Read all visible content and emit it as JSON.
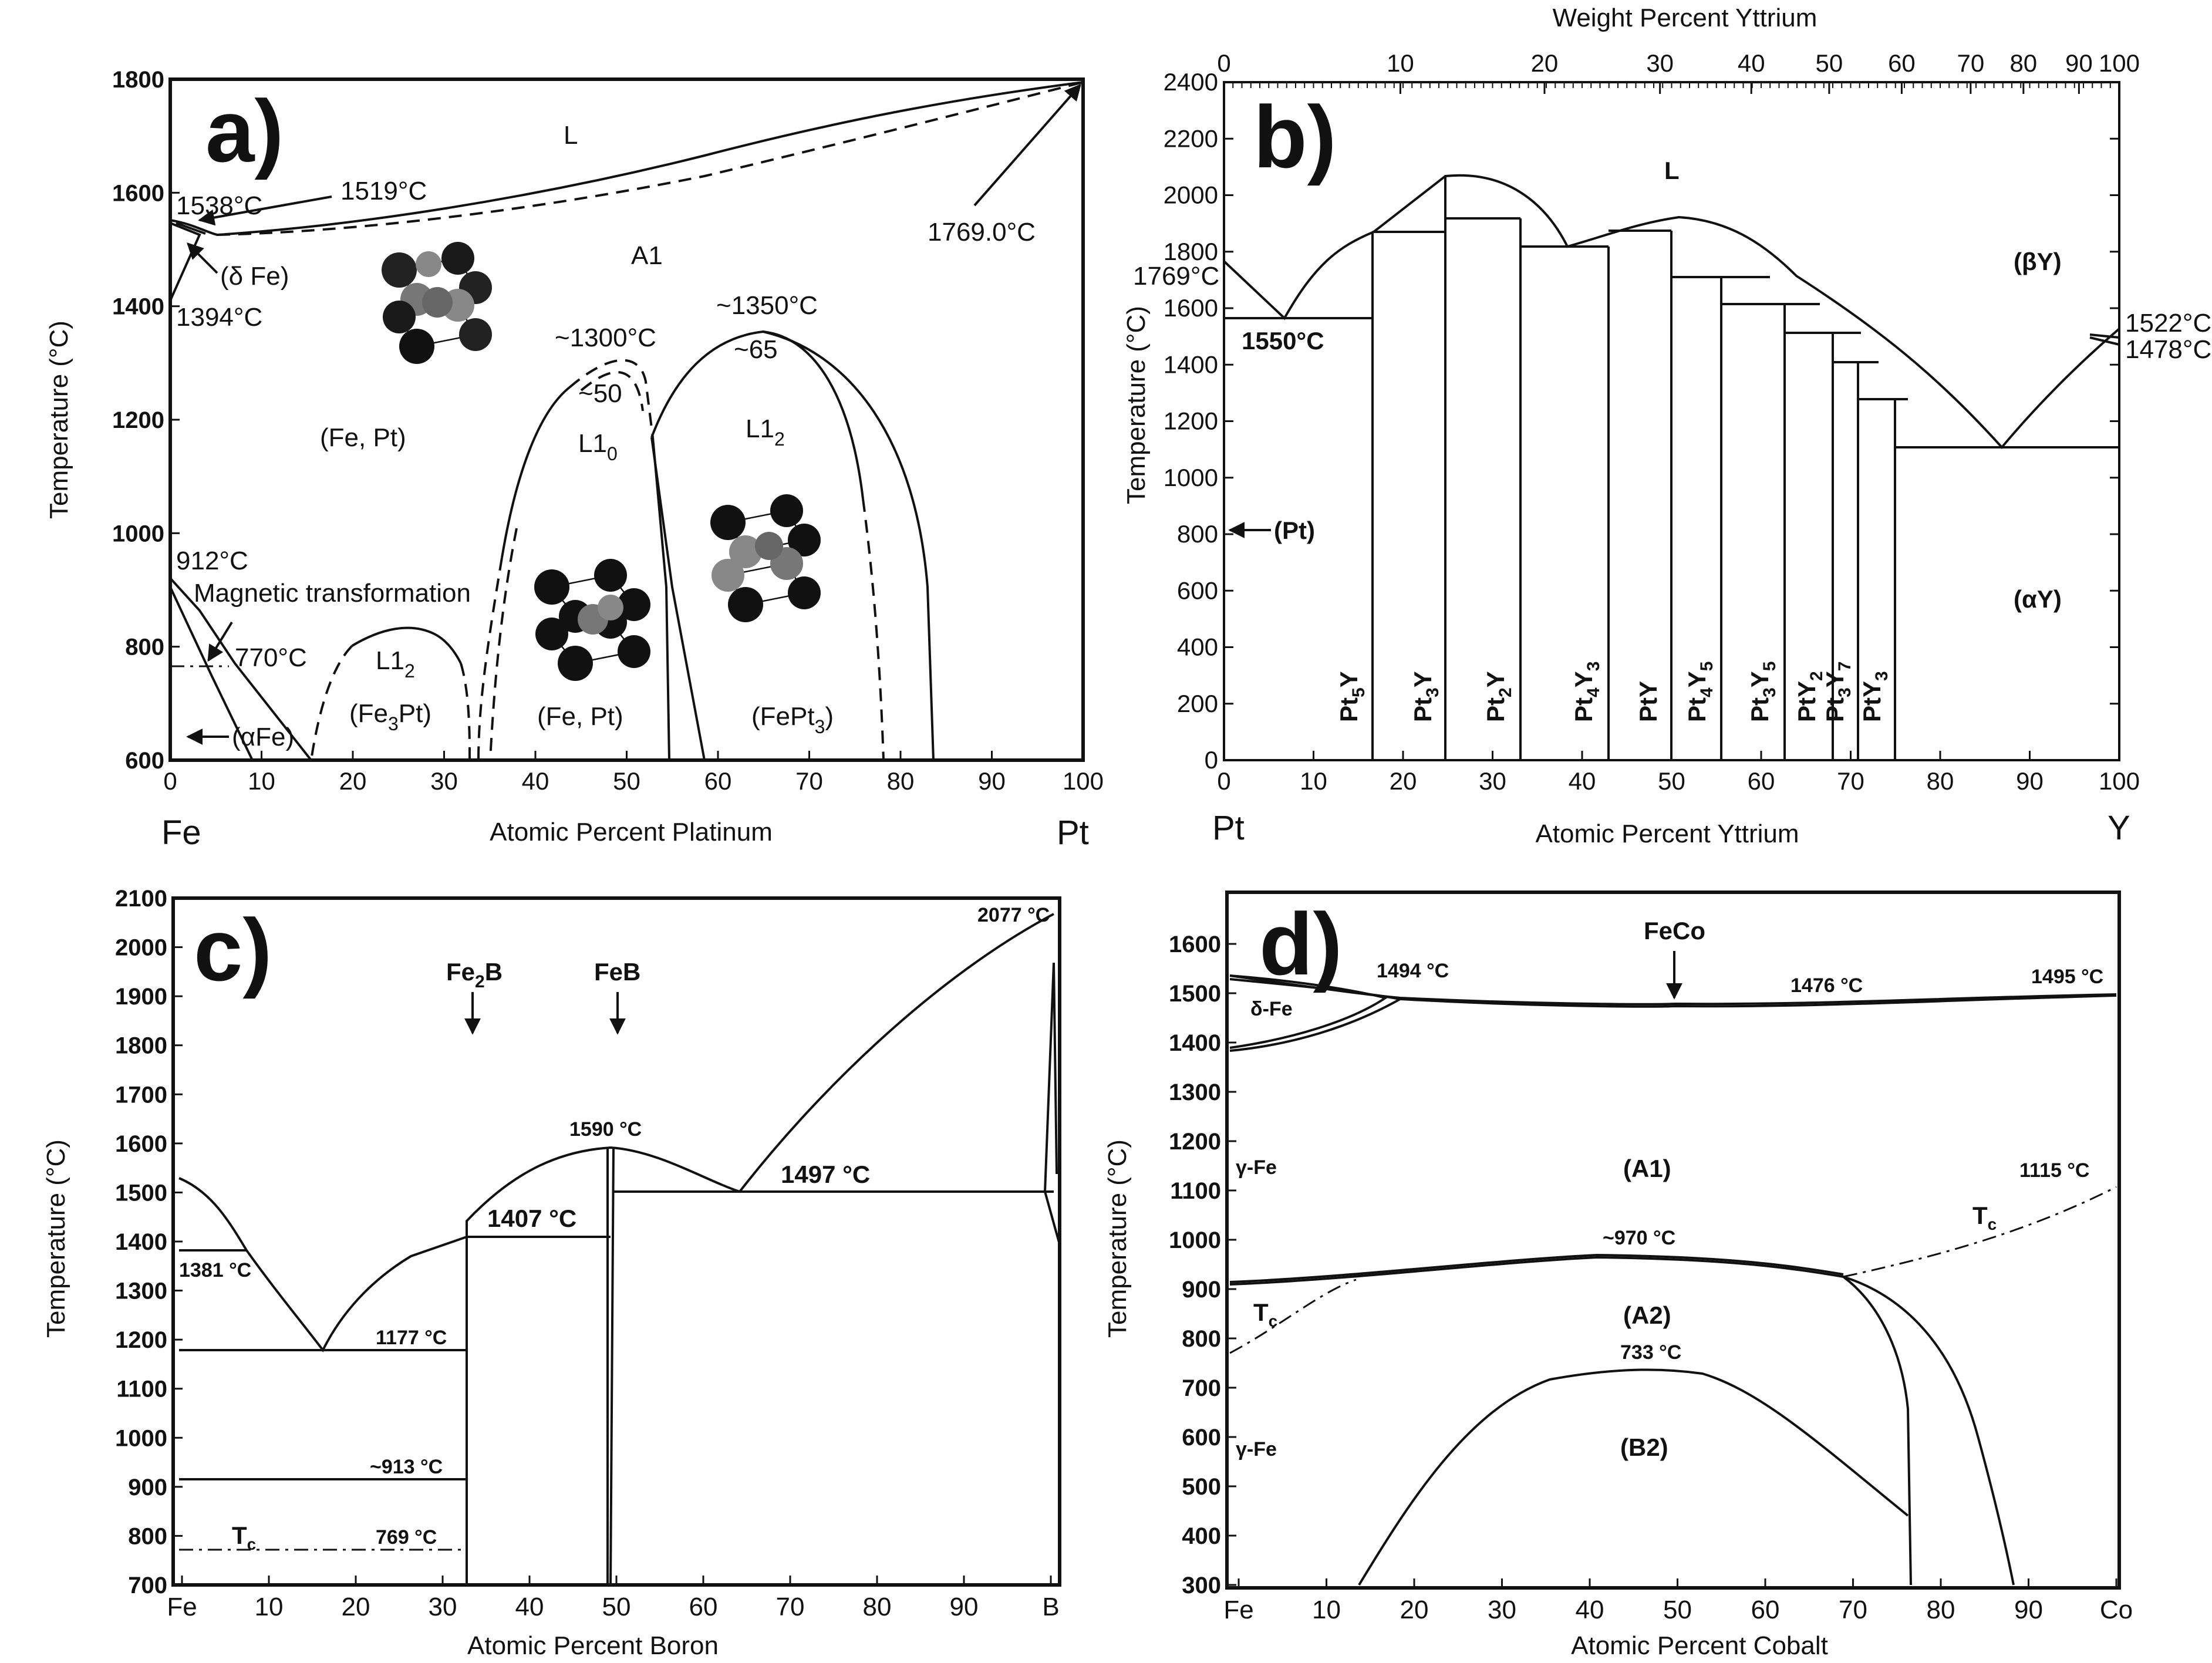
{
  "panels": {
    "a": {
      "label": "a)",
      "y_axis_title": "Temperature (°C)",
      "x_axis_title": "Atomic Percent Platinum",
      "x_start_label": "Fe",
      "x_end_label": "Pt",
      "y_ticks": [
        "600",
        "800",
        "1000",
        "1200",
        "1400",
        "1600",
        "1800"
      ],
      "x_ticks": [
        "0",
        "10",
        "20",
        "30",
        "40",
        "50",
        "60",
        "70",
        "80",
        "90",
        "100"
      ],
      "annotations": {
        "L": "L",
        "t1538": "1538°C",
        "t1519": "1519°C",
        "t1769": "1769.0°C",
        "delta_fe": "(δ Fe)",
        "t1394": "1394°C",
        "A1": "A1",
        "t1350": "~1350°C",
        "c65": "~65",
        "t1300": "~1300°C",
        "c50": "~50",
        "fept_left": "(Fe, Pt)",
        "l10": "L1",
        "l10_sub": "0",
        "l12_right": "L1",
        "l12_right_sub": "2",
        "t912": "912°C",
        "magnetic": "Magnetic transformation",
        "t770": "770°C",
        "l12_left": "L1",
        "l12_left_sub": "2",
        "fe3pt_pre": "(Fe",
        "fe3pt_sub": "3",
        "fe3pt_post": "Pt)",
        "fept_mid": "(Fe, Pt)",
        "fept3_pre": "(FePt",
        "fept3_sub": "3",
        "fept3_post": ")",
        "alpha_fe": "(αFe)"
      }
    },
    "b": {
      "label": "b)",
      "top_axis_title": "Weight Percent Yttrium",
      "y_axis_title": "Temperature (°C)",
      "x_axis_title": "Atomic Percent Yttrium",
      "x_start_label": "Pt",
      "x_end_label": "Y",
      "y_ticks": [
        "0",
        "200",
        "400",
        "600",
        "800",
        "1000",
        "1200",
        "1400",
        "1600",
        "1800",
        "2000",
        "2200",
        "2400"
      ],
      "x_ticks": [
        "0",
        "10",
        "20",
        "30",
        "40",
        "50",
        "60",
        "70",
        "80",
        "90",
        "100"
      ],
      "top_ticks": [
        "0",
        "10",
        "20",
        "30",
        "40",
        "50",
        "60",
        "70",
        "80",
        "90",
        "100"
      ],
      "annotations": {
        "L": "L",
        "beta_y": "(βY)",
        "alpha_y": "(αY)",
        "t1769": "1769°C",
        "t1550": "1550°C",
        "t1522": "1522°C",
        "t1478": "1478°C",
        "pt": "(Pt)"
      },
      "compounds": [
        {
          "base": "Pt",
          "s1": "5",
          "mid": "Y",
          "s2": ""
        },
        {
          "base": "Pt",
          "s1": "3",
          "mid": "Y",
          "s2": ""
        },
        {
          "base": "Pt",
          "s1": "2",
          "mid": "Y",
          "s2": ""
        },
        {
          "base": "Pt",
          "s1": "4",
          "mid": "Y",
          "s2": "3"
        },
        {
          "base": "PtY",
          "s1": "",
          "mid": "",
          "s2": ""
        },
        {
          "base": "Pt",
          "s1": "4",
          "mid": "Y",
          "s2": "5"
        },
        {
          "base": "Pt",
          "s1": "3",
          "mid": "Y",
          "s2": "5"
        },
        {
          "base": "PtY",
          "s1": "2",
          "mid": "",
          "s2": ""
        },
        {
          "base": "Pt",
          "s1": "3",
          "mid": "Y",
          "s2": "7"
        },
        {
          "base": "PtY",
          "s1": "3",
          "mid": "",
          "s2": ""
        }
      ]
    },
    "c": {
      "label": "c)",
      "y_axis_title": "Temperature (°C)",
      "x_axis_title": "Atomic Percent Boron",
      "y_ticks": [
        "700",
        "800",
        "900",
        "1000",
        "1100",
        "1200",
        "1300",
        "1400",
        "1500",
        "1600",
        "1700",
        "1800",
        "1900",
        "2000",
        "2100"
      ],
      "x_ticks": [
        "Fe",
        "10",
        "20",
        "30",
        "40",
        "50",
        "60",
        "70",
        "80",
        "90",
        "B"
      ],
      "annotations": {
        "fe2b_pre": "Fe",
        "fe2b_sub": "2",
        "fe2b_post": "B",
        "feb": "FeB",
        "t1590": "1590 °C",
        "t1497": "1497 °C",
        "t1407": "1407 °C",
        "t2077": "2077 °C",
        "t1381": "1381 °C",
        "t1177": "1177 °C",
        "t913": "~913 °C",
        "tc": "T",
        "tc_sub": "c",
        "t769": "769 °C"
      }
    },
    "d": {
      "label": "d)",
      "y_axis_title": "Temperature (°C)",
      "x_axis_title": "Atomic Percent Cobalt",
      "y_ticks": [
        "300",
        "400",
        "500",
        "600",
        "700",
        "800",
        "900",
        "1000",
        "1100",
        "1200",
        "1300",
        "1400",
        "1500",
        "1600"
      ],
      "x_ticks": [
        "Fe",
        "10",
        "20",
        "30",
        "40",
        "50",
        "60",
        "70",
        "80",
        "90",
        "Co"
      ],
      "annotations": {
        "feco": "FeCo",
        "t1494": "1494 °C",
        "t1476": "1476 °C",
        "t1495": "1495 °C",
        "delta_fe": "δ-Fe",
        "gamma_fe_top": "γ-Fe",
        "A1": "(A1)",
        "t1115": "1115 °C",
        "tc_right": "T",
        "tc_right_sub": "c",
        "t970": "~970 °C",
        "tc_left": "T",
        "tc_left_sub": "c",
        "A2": "(A2)",
        "t733": "733 °C",
        "gamma_fe_bot": "γ-Fe",
        "B2": "(B2)"
      }
    }
  }
}
